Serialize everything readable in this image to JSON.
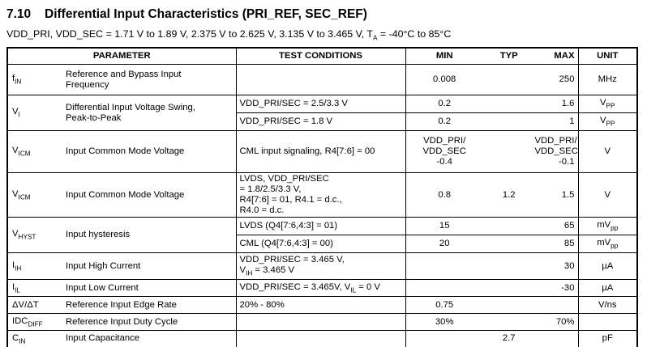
{
  "title": {
    "number": "7.10",
    "text": "Differential Input Characteristics (PRI_REF, SEC_REF)"
  },
  "subtitle": [
    {
      "t": "VDD_PRI, VDD_SEC = 1.71 V to 1.89 V, 2.375 V to 2.625 V, 3.135 V to 3.465 V, T"
    },
    {
      "sub": "A"
    },
    {
      "t": " = -40°C to 85°C"
    }
  ],
  "table": {
    "headers": {
      "parameter": "PARAMETER",
      "test_conditions": "TEST CONDITIONS",
      "min": "MIN",
      "typ": "TYP",
      "max": "MAX",
      "unit": "UNIT"
    },
    "rows": [
      {
        "sym": [
          {
            "t": "f"
          },
          {
            "sub": "IN"
          }
        ],
        "desc": "Reference and Bypass Input\nFrequency",
        "cond": "",
        "min": "0.008",
        "typ": "",
        "max": "250",
        "unit": [
          {
            "t": "MHz"
          }
        ]
      },
      {
        "sym": [
          {
            "t": "V"
          },
          {
            "sub": "I"
          }
        ],
        "desc": "Differential Input Voltage Swing,\nPeak-to-Peak",
        "cond": "VDD_PRI/SEC = 2.5/3.3 V",
        "min": "0.2",
        "typ": "",
        "max": "1.6",
        "unit": [
          {
            "t": "V"
          },
          {
            "sub": "PP"
          }
        ]
      },
      {
        "cond": "VDD_PRI/SEC = 1.8 V",
        "min": "0.2",
        "typ": "",
        "max": "1",
        "unit": [
          {
            "t": "V"
          },
          {
            "sub": "PP"
          }
        ]
      },
      {
        "sym": [
          {
            "t": "V"
          },
          {
            "sub": "ICM"
          }
        ],
        "desc": "Input Common Mode Voltage",
        "cond": "CML input signaling, R4[7:6] = 00",
        "min": "VDD_PRI/\nVDD_SEC\n-0.4",
        "typ": "",
        "max": "VDD_PRI/\nVDD_SEC\n-0.1",
        "unit": [
          {
            "t": "V"
          }
        ]
      },
      {
        "sym": [
          {
            "t": "V"
          },
          {
            "sub": "ICM"
          }
        ],
        "desc": "Input Common Mode Voltage",
        "cond": "LVDS, VDD_PRI/SEC\n= 1.8/2.5/3.3 V,\nR4[7:6] = 01, R4.1 = d.c.,\nR4.0 = d.c.",
        "min": "0.8",
        "typ": "1.2",
        "max": "1.5",
        "unit": [
          {
            "t": "V"
          }
        ]
      },
      {
        "sym": [
          {
            "t": "V"
          },
          {
            "sub": "HYST"
          }
        ],
        "desc": "Input hysteresis",
        "cond": "LVDS (Q4[7:6,4:3] = 01)",
        "min": "15",
        "typ": "",
        "max": "65",
        "unit": [
          {
            "t": "mV"
          },
          {
            "sub": "pp"
          }
        ]
      },
      {
        "cond": "CML (Q4[7:6,4:3] = 00)",
        "min": "20",
        "typ": "",
        "max": "85",
        "unit": [
          {
            "t": "mV"
          },
          {
            "sub": "pp"
          }
        ]
      },
      {
        "sym": [
          {
            "t": "I"
          },
          {
            "sub": "IH"
          }
        ],
        "desc": "Input High Current",
        "cond": [
          {
            "t": "VDD_PRI/SEC = 3.465 V,\nV"
          },
          {
            "sub": "IH"
          },
          {
            "t": " = 3.465 V"
          }
        ],
        "min": "",
        "typ": "",
        "max": "30",
        "unit": [
          {
            "t": "µA"
          }
        ]
      },
      {
        "sym": [
          {
            "t": "I"
          },
          {
            "sub": "IL"
          }
        ],
        "desc": "Input Low Current",
        "cond": [
          {
            "t": "VDD_PRI/SEC = 3.465V, V"
          },
          {
            "sub": "IL"
          },
          {
            "t": " = 0 V"
          }
        ],
        "min": "",
        "typ": "",
        "max": "-30",
        "unit": [
          {
            "t": "µA"
          }
        ]
      },
      {
        "sym": [
          {
            "t": "ΔV/ΔT"
          }
        ],
        "desc": "Reference Input Edge Rate",
        "cond": "20% - 80%",
        "min": "0.75",
        "typ": "",
        "max": "",
        "unit": [
          {
            "t": "V/ns"
          }
        ]
      },
      {
        "sym": [
          {
            "t": "IDC"
          },
          {
            "sub": "DIFF"
          }
        ],
        "desc": "Reference Input Duty Cycle",
        "cond": "",
        "min": "30%",
        "typ": "",
        "max": "70%",
        "unit": [
          {
            "t": ""
          }
        ]
      },
      {
        "sym": [
          {
            "t": "C"
          },
          {
            "sub": "IN"
          }
        ],
        "desc": "Input Capacitance",
        "cond": "",
        "min": "",
        "typ": "2.7",
        "max": "",
        "unit": [
          {
            "t": "pF"
          }
        ]
      }
    ]
  }
}
